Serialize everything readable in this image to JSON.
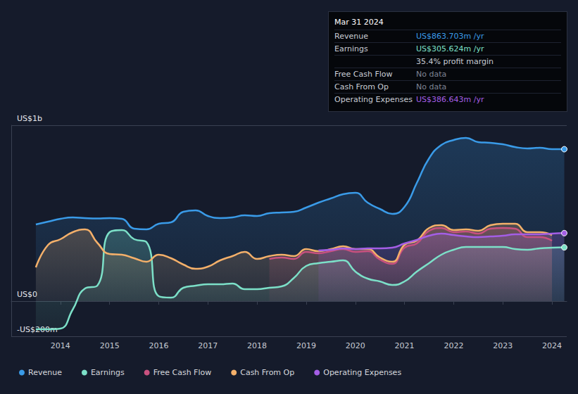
{
  "chart_data": {
    "type": "line",
    "x": [
      2013.5,
      2013.75,
      2014,
      2014.25,
      2014.5,
      2014.75,
      2015,
      2015.25,
      2015.5,
      2015.75,
      2016,
      2016.25,
      2016.5,
      2016.75,
      2017,
      2017.25,
      2017.5,
      2017.75,
      2018,
      2018.25,
      2018.5,
      2018.75,
      2019,
      2019.25,
      2019.5,
      2019.75,
      2020,
      2020.25,
      2020.5,
      2020.75,
      2021,
      2021.25,
      2021.5,
      2021.75,
      2022,
      2022.25,
      2022.5,
      2022.75,
      2023,
      2023.25,
      2023.5,
      2023.75,
      2024,
      2024.25
    ],
    "series": [
      {
        "name": "Revenue",
        "color": "#3a9be8",
        "values": [
          436,
          452,
          468,
          476,
          472,
          470,
          472,
          468,
          412,
          408,
          440,
          448,
          508,
          516,
          484,
          472,
          476,
          488,
          484,
          500,
          504,
          508,
          532,
          560,
          584,
          608,
          616,
          560,
          524,
          496,
          536,
          672,
          812,
          888,
          916,
          928,
          904,
          900,
          892,
          876,
          868,
          872,
          864,
          863.703
        ]
      },
      {
        "name": "Earnings",
        "color": "#7ce0c8",
        "values": [
          -160,
          -160,
          -156,
          -48,
          72,
          88,
          392,
          404,
          352,
          336,
          28,
          20,
          76,
          88,
          96,
          96,
          100,
          68,
          68,
          76,
          84,
          132,
          200,
          216,
          224,
          232,
          168,
          128,
          112,
          92,
          112,
          168,
          216,
          264,
          292,
          308,
          308,
          308,
          308,
          296,
          292,
          300,
          304,
          305.624
        ]
      },
      {
        "name": "Free Cash Flow",
        "color": "#c8517f",
        "values": [
          null,
          null,
          null,
          null,
          null,
          null,
          null,
          null,
          null,
          null,
          null,
          null,
          null,
          null,
          null,
          null,
          null,
          null,
          null,
          240,
          248,
          240,
          280,
          272,
          284,
          296,
          280,
          284,
          236,
          212,
          304,
          328,
          400,
          416,
          392,
          396,
          384,
          412,
          416,
          412,
          364,
          364,
          344,
          null
        ]
      },
      {
        "name": "Cash From Op",
        "color": "#f4b06a",
        "values": [
          192,
          320,
          352,
          392,
          408,
          332,
          268,
          264,
          244,
          224,
          264,
          244,
          208,
          184,
          196,
          232,
          256,
          280,
          240,
          256,
          264,
          256,
          296,
          284,
          296,
          312,
          296,
          296,
          248,
          224,
          320,
          344,
          416,
          432,
          404,
          408,
          400,
          432,
          440,
          440,
          392,
          392,
          376,
          null
        ]
      },
      {
        "name": "Operating Expenses",
        "color": "#a45ee5",
        "values": [
          null,
          null,
          null,
          null,
          null,
          null,
          null,
          null,
          null,
          null,
          null,
          null,
          null,
          null,
          null,
          null,
          null,
          null,
          null,
          null,
          null,
          null,
          null,
          288,
          292,
          300,
          296,
          300,
          300,
          304,
          328,
          348,
          372,
          384,
          376,
          368,
          364,
          368,
          372,
          380,
          380,
          380,
          384,
          386.643
        ]
      }
    ],
    "xlim": [
      2013,
      2024.3
    ],
    "xticks": [
      2014,
      2015,
      2016,
      2017,
      2018,
      2019,
      2020,
      2021,
      2022,
      2023,
      2024
    ],
    "ylim": [
      -200,
      1000
    ],
    "yticks": [
      {
        "value": -200,
        "label": "-US$200m"
      },
      {
        "value": 0,
        "label": "US$0"
      },
      {
        "value": 1000,
        "label": "US$1b"
      }
    ],
    "grid": true,
    "legend": "bottom-left",
    "annotations": {
      "title": "Mar 31 2024",
      "rows": [
        {
          "label": "Revenue",
          "text": "US$863.703m /yr"
        },
        {
          "label": "Earnings",
          "text": "US$305.624m /yr"
        },
        {
          "text": "35.4% profit margin"
        },
        {
          "label": "Free Cash Flow",
          "text": "No data"
        },
        {
          "label": "Cash From Op",
          "text": "No data"
        },
        {
          "label": "Operating Expenses",
          "text": "US$386.643m /yr"
        }
      ]
    }
  }
}
